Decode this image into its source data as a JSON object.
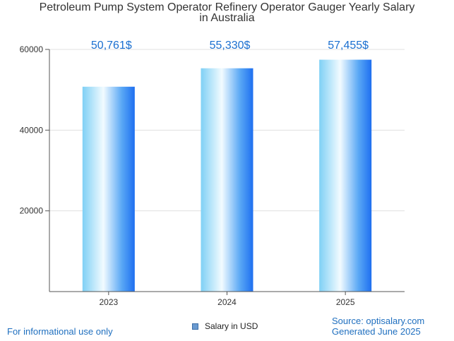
{
  "chart_data": {
    "type": "bar",
    "title_lines": [
      "Petroleum Pump System Operator Refinery Operator Gauger Yearly Salary",
      "in Australia"
    ],
    "categories": [
      "2023",
      "2024",
      "2025"
    ],
    "series": [
      {
        "name": "Salary in USD",
        "values": [
          50761,
          55330,
          57455
        ]
      }
    ],
    "data_labels": [
      "50,761$",
      "55,330$",
      "57,455$"
    ],
    "y_ticks": [
      20000,
      40000,
      60000
    ],
    "ylim": [
      0,
      60000
    ],
    "xlabel": "",
    "ylabel": "",
    "grid": true,
    "legend_position": "bottom-center"
  },
  "footer": {
    "disclaimer": "For informational use only",
    "source": "Source: optisalary.com",
    "generated": "Generated June 2025"
  },
  "colors": {
    "bar_light": "#e8f8ff",
    "bar_mid": "#7fd0f5",
    "bar_dark": "#1e6ff0",
    "data_label": "#1a6fd0",
    "grid": "#e0e0e0",
    "axis": "#555555",
    "footer_text": "#1f6fbf"
  }
}
